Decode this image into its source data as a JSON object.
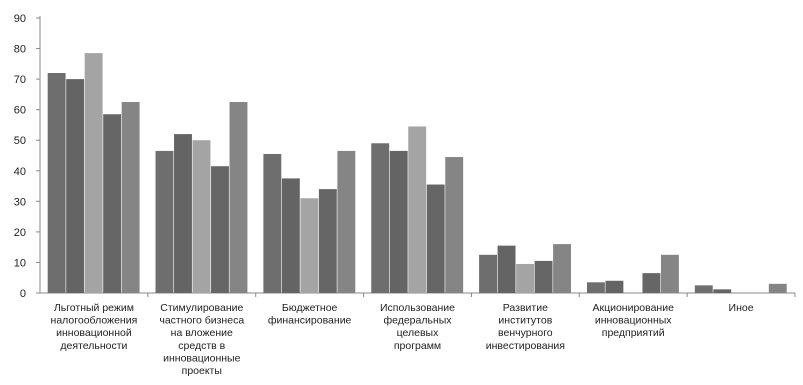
{
  "chart_data": {
    "type": "bar",
    "title": "",
    "xlabel": "",
    "ylabel": "",
    "ylim": [
      0,
      90
    ],
    "yticks": [
      0,
      10,
      20,
      30,
      40,
      50,
      60,
      70,
      80,
      90
    ],
    "grid": false,
    "legend": "none",
    "categories": [
      [
        "Льготный режим",
        "налогообложения",
        "инновационной",
        "деятельности"
      ],
      [
        "Стимулирование",
        "частного бизнеса",
        "на вложение",
        "средств в",
        "инновационные",
        "проекты"
      ],
      [
        "Бюджетное",
        "финансирование"
      ],
      [
        "Использование",
        "федеральных",
        "целевых",
        "программ"
      ],
      [
        "Развитие",
        "институтов",
        "венчурного",
        "инвестирования"
      ],
      [
        "Акционирование",
        "инновационных",
        "предприятий"
      ],
      [
        "Иное"
      ]
    ],
    "series": [
      {
        "color": "#6e6e6e",
        "values": [
          72,
          46.5,
          45.5,
          49,
          12.5,
          3.5,
          2.5
        ]
      },
      {
        "color": "#646464",
        "values": [
          70,
          52,
          37.5,
          46.5,
          15.5,
          4,
          1.2
        ]
      },
      {
        "color": "#a4a4a4",
        "values": [
          78.5,
          50,
          31,
          54.5,
          9.5,
          0,
          0
        ]
      },
      {
        "color": "#666666",
        "values": [
          58.5,
          41.5,
          34,
          35.5,
          10.5,
          6.5,
          0
        ]
      },
      {
        "color": "#858585",
        "values": [
          62.5,
          62.5,
          46.5,
          44.5,
          16,
          12.5,
          3
        ]
      }
    ]
  }
}
